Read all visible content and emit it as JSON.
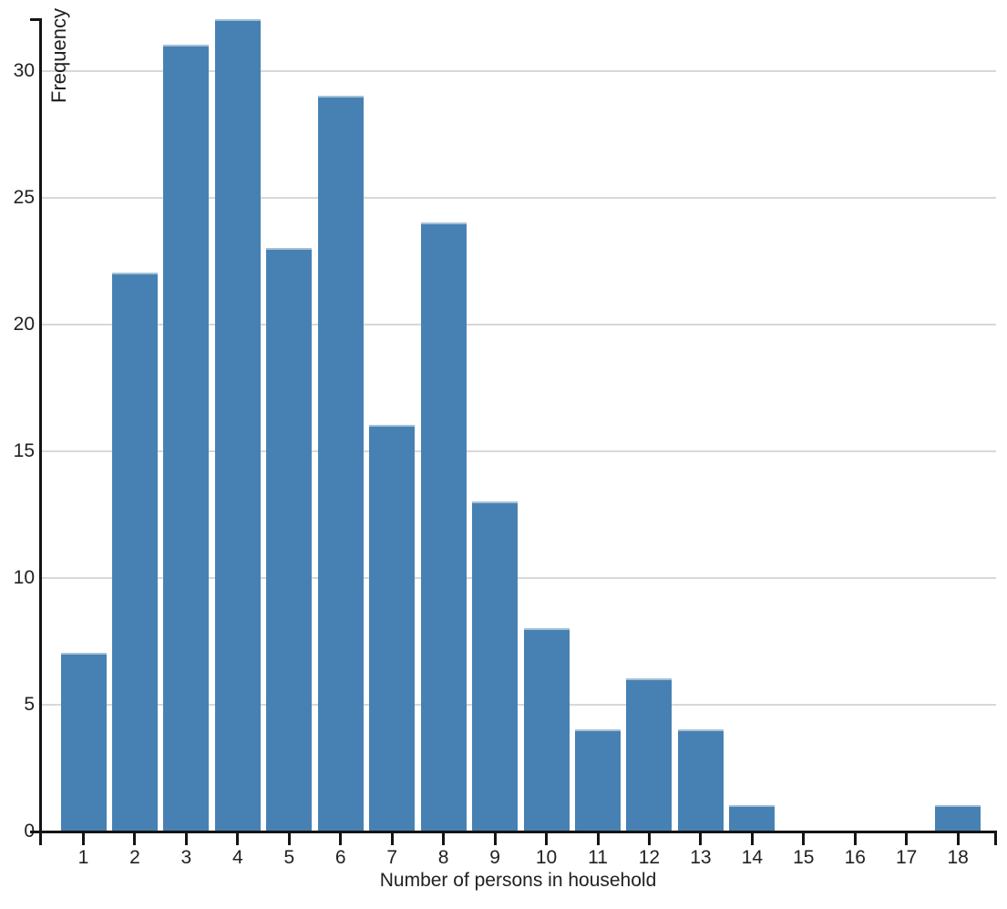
{
  "chart_data": {
    "type": "bar",
    "title": "",
    "categories": [
      "1",
      "2",
      "3",
      "4",
      "5",
      "6",
      "7",
      "8",
      "9",
      "10",
      "11",
      "12",
      "13",
      "14",
      "15",
      "16",
      "17",
      "18"
    ],
    "values": [
      7,
      22,
      31,
      32,
      23,
      29,
      16,
      24,
      13,
      8,
      4,
      6,
      4,
      1,
      0,
      0,
      0,
      1
    ],
    "xlabel": "Number of persons in household",
    "ylabel": "Frequency",
    "yticks": [
      0,
      5,
      10,
      15,
      20,
      25,
      30
    ],
    "ylim": [
      0,
      32
    ],
    "grid": "horizontal-only",
    "legend_position": "none",
    "colors": {
      "bar": "#4781B3",
      "bar_top_edge": "#A3C0D7",
      "gridline": "#D8D8D8",
      "axis": "#141414",
      "text": "#212121",
      "background": "#FFFFFF"
    }
  }
}
